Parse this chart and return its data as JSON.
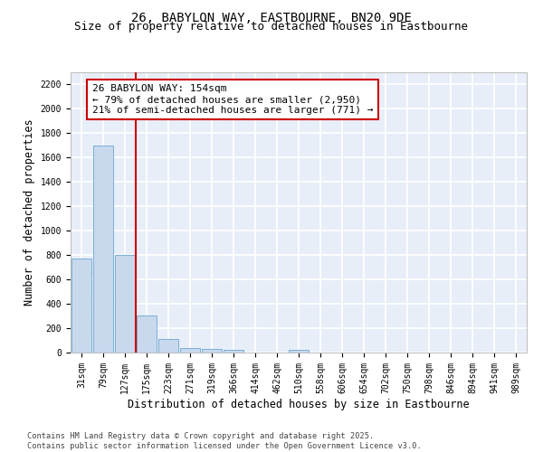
{
  "title_line1": "26, BABYLON WAY, EASTBOURNE, BN20 9DE",
  "title_line2": "Size of property relative to detached houses in Eastbourne",
  "xlabel": "Distribution of detached houses by size in Eastbourne",
  "ylabel": "Number of detached properties",
  "categories": [
    "31sqm",
    "79sqm",
    "127sqm",
    "175sqm",
    "223sqm",
    "271sqm",
    "319sqm",
    "366sqm",
    "414sqm",
    "462sqm",
    "510sqm",
    "558sqm",
    "606sqm",
    "654sqm",
    "702sqm",
    "750sqm",
    "798sqm",
    "846sqm",
    "894sqm",
    "941sqm",
    "989sqm"
  ],
  "values": [
    770,
    1700,
    800,
    305,
    110,
    40,
    30,
    20,
    0,
    0,
    20,
    0,
    0,
    0,
    0,
    0,
    0,
    0,
    0,
    0,
    0
  ],
  "bar_color": "#c8d9ee",
  "bar_edge_color": "#7bafd4",
  "ylim": [
    0,
    2300
  ],
  "yticks": [
    0,
    200,
    400,
    600,
    800,
    1000,
    1200,
    1400,
    1600,
    1800,
    2000,
    2200
  ],
  "vline_color": "#cc0000",
  "annotation_text": "26 BABYLON WAY: 154sqm\n← 79% of detached houses are smaller (2,950)\n21% of semi-detached houses are larger (771) →",
  "annotation_box_color": "#cc0000",
  "background_color": "#e8eef8",
  "grid_color": "#ffffff",
  "footer_text": "Contains HM Land Registry data © Crown copyright and database right 2025.\nContains public sector information licensed under the Open Government Licence v3.0.",
  "title_fontsize": 10,
  "subtitle_fontsize": 9,
  "annotation_fontsize": 8,
  "tick_fontsize": 7,
  "label_fontsize": 8.5
}
